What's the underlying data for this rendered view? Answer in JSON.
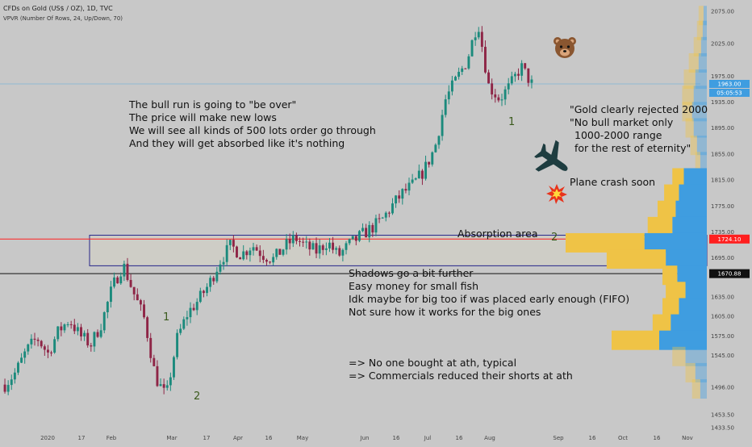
{
  "header": {
    "title": "CFDs on Gold (US$ / OZ), 1D, TVC",
    "indicator": "VPVR (Number Of Rows, 24, Up/Down, 70)"
  },
  "colors": {
    "background": "#c8c8c8",
    "up_candle": "#1b8a7c",
    "down_candle": "#8e2546",
    "vp_up": "#3f9de0",
    "vp_down": "#efc346",
    "box_border": "#26258a",
    "red_line": "#ff1f1f",
    "black_line": "#111111",
    "price_line": "#7fb6d6"
  },
  "icons": {
    "bear": "bear-face-icon",
    "plane": "airplane-icon",
    "crash": "explosion-icon"
  },
  "chart_data": {
    "type": "candlestick",
    "y_axis_labels": [
      "2075.00",
      "2025.00",
      "1975.00",
      "1935.00",
      "1895.00",
      "1855.00",
      "1815.00",
      "1775.00",
      "1735.00",
      "1695.00",
      "1635.00",
      "1605.00",
      "1575.00",
      "1545.00",
      "1496.00",
      "1453.50",
      "1433.50"
    ],
    "x_axis_labels": [
      "2020",
      "17",
      "Feb",
      "Mar",
      "17",
      "Apr",
      "16",
      "May",
      "Jun",
      "16",
      "Jul",
      "16",
      "Aug",
      "Sep",
      "16",
      "Oct",
      "16",
      "Nov"
    ],
    "ylim": [
      1425,
      2085
    ],
    "price_tags": {
      "current": "1963.00",
      "countdown": "05:05:53",
      "red_level": "1724.10",
      "black_level": "1670.88"
    },
    "levels": {
      "current": 1963.0,
      "red": 1724.1,
      "black": 1670.88
    },
    "absorption_zone": {
      "low": 1683,
      "high": 1730
    },
    "price_path": [
      1500,
      1519,
      1552,
      1572,
      1548,
      1583,
      1600,
      1575,
      1562,
      1595,
      1650,
      1685,
      1640,
      1600,
      1512,
      1480,
      1570,
      1610,
      1630,
      1655,
      1690,
      1714,
      1700,
      1715,
      1700,
      1693,
      1712,
      1726,
      1712,
      1705,
      1720,
      1698,
      1715,
      1728,
      1740,
      1752,
      1775,
      1795,
      1808,
      1830,
      1865,
      1940,
      1970,
      2000,
      2060,
      1960,
      1940,
      1960,
      1990,
      1963
    ],
    "volume_profile": [
      {
        "price": 2068,
        "up": 4,
        "down": 6
      },
      {
        "price": 2045,
        "up": 5,
        "down": 7
      },
      {
        "price": 2020,
        "up": 7,
        "down": 9
      },
      {
        "price": 1995,
        "up": 10,
        "down": 12
      },
      {
        "price": 1970,
        "up": 14,
        "down": 14
      },
      {
        "price": 1945,
        "up": 16,
        "down": 14
      },
      {
        "price": 1920,
        "up": 18,
        "down": 12
      },
      {
        "price": 1895,
        "up": 16,
        "down": 10
      },
      {
        "price": 1868,
        "up": 12,
        "down": 8
      },
      {
        "price": 1843,
        "up": 8,
        "down": 6
      },
      {
        "price": 1818,
        "up": 28,
        "down": 14
      },
      {
        "price": 1793,
        "up": 34,
        "down": 18
      },
      {
        "price": 1768,
        "up": 38,
        "down": 22
      },
      {
        "price": 1743,
        "up": 42,
        "down": 30
      },
      {
        "price": 1718,
        "up": 76,
        "down": 96
      },
      {
        "price": 1693,
        "up": 50,
        "down": 72
      },
      {
        "price": 1668,
        "up": 36,
        "down": 18
      },
      {
        "price": 1643,
        "up": 26,
        "down": 24
      },
      {
        "price": 1618,
        "up": 34,
        "down": 20
      },
      {
        "price": 1593,
        "up": 44,
        "down": 22
      },
      {
        "price": 1568,
        "up": 58,
        "down": 58
      },
      {
        "price": 1543,
        "up": 26,
        "down": 16
      },
      {
        "price": 1518,
        "up": 14,
        "down": 12
      },
      {
        "price": 1493,
        "up": 8,
        "down": 10
      }
    ]
  },
  "annotations": {
    "top_left": [
      "The bull run is going to \"be over\"",
      "The price will make new lows",
      "We will see all kinds of 500 lots order go through",
      "And they will get absorbed like it's nothing"
    ],
    "top_right": [
      "\"Gold clearly rejected 2000\"",
      "\"No bull market only",
      "1000-2000 range",
      "for the rest of eternity\""
    ],
    "plane_crash": "Plane crash soon",
    "absorption": "Absorption area",
    "middle": [
      "Shadows go a bit further",
      "Easy money for small fish",
      "Idk maybe for big too if was placed early enough (FIFO)",
      "Not sure how it works for the big ones"
    ],
    "bottom": [
      "=> No one bought at ath, typical",
      "=> Commercials reduced their shorts at ath"
    ],
    "marker_1": "1",
    "marker_2": "2"
  }
}
